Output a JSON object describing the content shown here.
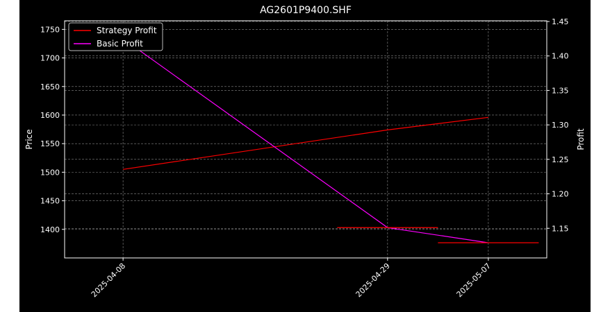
{
  "chart_data": {
    "type": "line",
    "title": "AG2601P9400.SHF",
    "xlabel": "",
    "ylabel_left": "Price",
    "ylabel_right": "Profit",
    "x": [
      "2025-04-08",
      "2025-04-29",
      "2025-05-07"
    ],
    "x_ticks": [
      "2025-04-08",
      "2025-04-29",
      "2025-05-07"
    ],
    "ylim_left": [
      1350,
      1765
    ],
    "yticks_left": [
      "1400",
      "1450",
      "1500",
      "1550",
      "1600",
      "1650",
      "1700",
      "1750"
    ],
    "ylim_right": [
      1.107,
      1.451
    ],
    "yticks_right": [
      "1.15",
      "1.20",
      "1.25",
      "1.30",
      "1.35",
      "1.40",
      "1.45"
    ],
    "grid": true,
    "legend_position": "top-left",
    "background": "#000000",
    "series": [
      {
        "name": "Strategy Profit",
        "axis": "left",
        "color": "#ff0000",
        "values": [
          1505,
          1574,
          1596
        ]
      },
      {
        "name": "Basic Profit",
        "axis": "right",
        "color": "#ff00ff",
        "values": [
          1.425,
          1.151,
          1.129
        ]
      }
    ],
    "marker_segments": [
      {
        "axis": "right",
        "x_from": "2025-04-25",
        "x_to": "2025-05-03",
        "y": 1.151,
        "color": "#ff0000"
      },
      {
        "axis": "right",
        "x_from": "2025-05-03",
        "x_to": "2025-05-11",
        "y": 1.129,
        "color": "#ff0000"
      }
    ]
  }
}
